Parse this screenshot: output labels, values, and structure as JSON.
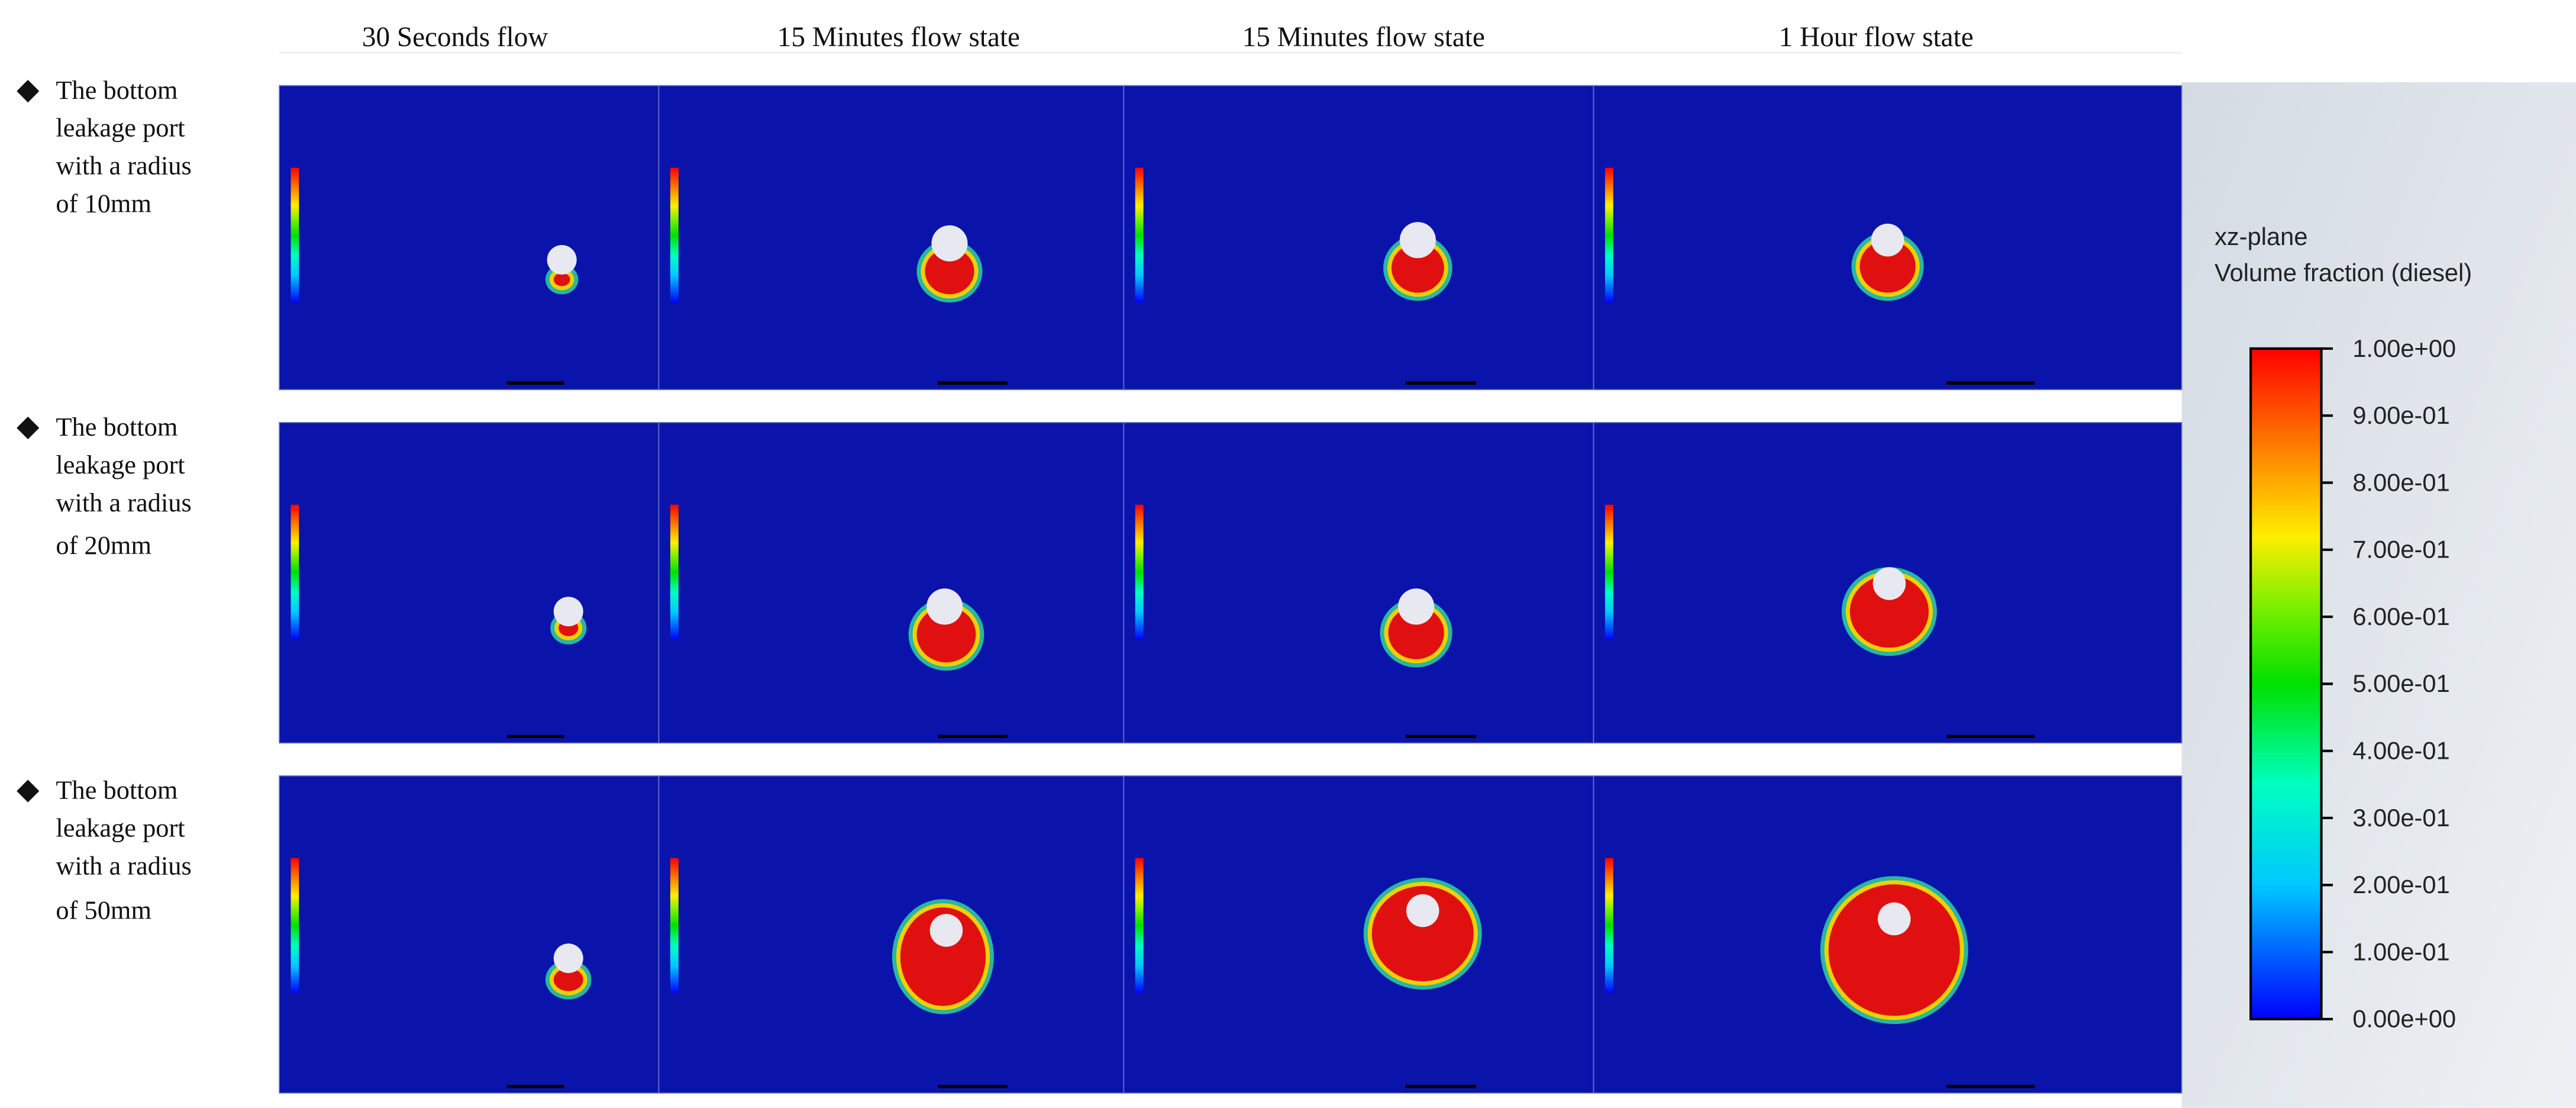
{
  "column_headers": [
    "30 Seconds flow",
    "15 Minutes flow state",
    "15 Minutes flow state",
    "1 Hour flow state"
  ],
  "rows": [
    {
      "label_lines": [
        "The bottom",
        "leakage port",
        "with a radius",
        "of 10mm"
      ]
    },
    {
      "label_lines": [
        "The bottom",
        "leakage port",
        "with a radius",
        "of 20mm"
      ]
    },
    {
      "label_lines": [
        "The bottom",
        "leakage port",
        "with a radius",
        "of 50mm"
      ]
    }
  ],
  "colorbar": {
    "title_lines": [
      "xz-plane",
      "Volume fraction (diesel)"
    ],
    "range": [
      0,
      1
    ],
    "ticks": [
      {
        "value": 1,
        "label": "1.00e+00"
      },
      {
        "value": 0.9,
        "label": "9.00e-01"
      },
      {
        "value": 0.8,
        "label": "8.00e-01"
      },
      {
        "value": 0.7,
        "label": "7.00e-01"
      },
      {
        "value": 0.6,
        "label": "6.00e-01"
      },
      {
        "value": 0.5,
        "label": "5.00e-01"
      },
      {
        "value": 0.4,
        "label": "4.00e-01"
      },
      {
        "value": 0.3,
        "label": "3.00e-01"
      },
      {
        "value": 0.2,
        "label": "2.00e-01"
      },
      {
        "value": 0.1,
        "label": "1.00e-01"
      },
      {
        "value": 0,
        "label": "0.00e+00"
      }
    ]
  }
}
